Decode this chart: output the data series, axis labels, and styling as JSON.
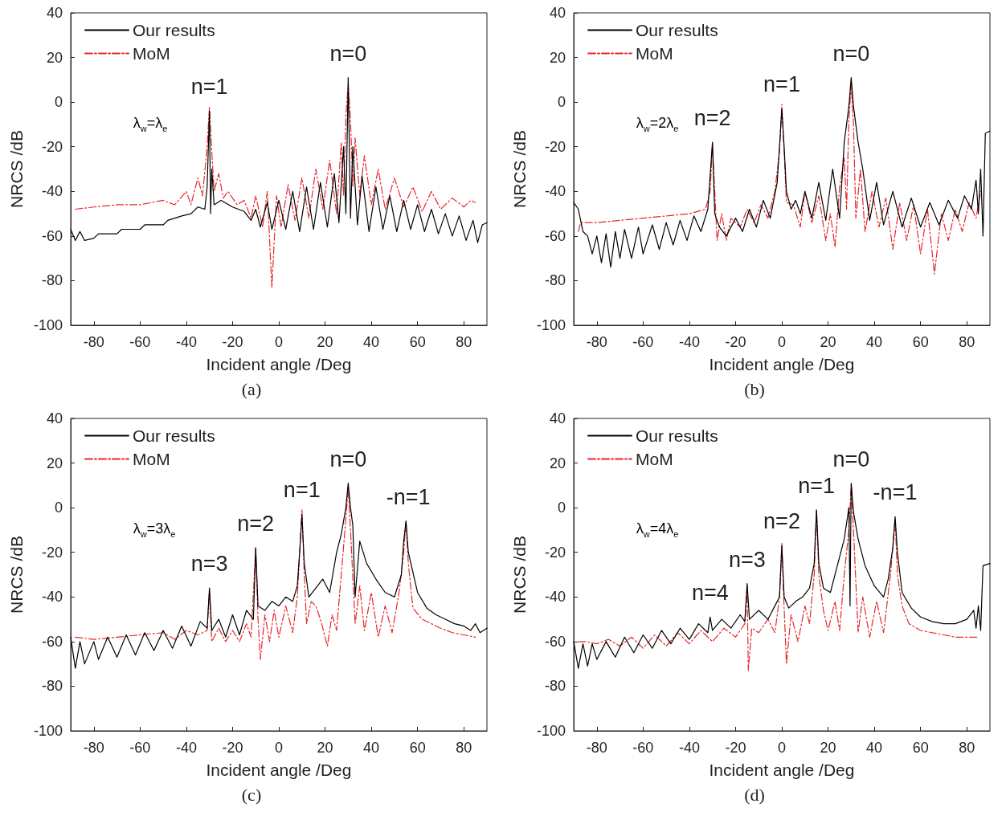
{
  "chart_data": [
    {
      "type": "line",
      "xlabel": "Incident angle /Deg",
      "ylabel": "NRCS /dB",
      "xlim": [
        -90,
        90
      ],
      "ylim": [
        -100,
        40
      ],
      "xticks": [
        -80,
        -60,
        -40,
        -20,
        0,
        20,
        40,
        60,
        80
      ],
      "yticks": [
        -100,
        -80,
        -60,
        -40,
        -20,
        0,
        20,
        40
      ],
      "grid": false,
      "legend": "top left",
      "marker": "none",
      "annotations": [
        "λ$_{w}$=λ$_{e}$",
        "(a)",
        {
          "text": "n=1",
          "x": -30,
          "y": -4
        },
        {
          "text": "n=0",
          "x": 30,
          "y": 11
        }
      ],
      "series": [
        {
          "name": "Our results",
          "color": "#000000",
          "line_style": "solid",
          "x": [
            -90,
            -88,
            -86,
            -84,
            -80,
            -78,
            -70,
            -68,
            -60,
            -58,
            -50,
            -48,
            -42,
            -38,
            -35,
            -32,
            -31,
            -30,
            -29.5,
            -29,
            -28,
            -25,
            -20,
            -15,
            -12,
            -10,
            -8,
            -5,
            -3,
            0,
            3,
            6,
            9,
            12,
            15,
            18,
            21,
            24,
            26,
            28,
            29,
            30,
            31,
            32,
            34,
            36,
            39,
            42,
            45,
            48,
            51,
            54,
            57,
            60,
            63,
            66,
            69,
            72,
            75,
            78,
            81,
            84,
            86,
            88,
            90
          ],
          "values": [
            -57,
            -62,
            -58,
            -62,
            -61,
            -59,
            -59,
            -57,
            -57,
            -55,
            -55,
            -53,
            -51,
            -50,
            -47,
            -48,
            -38,
            -4,
            -50,
            -30,
            -46,
            -44,
            -47,
            -49,
            -53,
            -48,
            -56,
            -45,
            -57,
            -44,
            -57,
            -40,
            -58,
            -38,
            -57,
            -36,
            -56,
            -32,
            -54,
            -20,
            -50,
            11,
            -52,
            -20,
            -55,
            -33,
            -58,
            -38,
            -57,
            -42,
            -58,
            -44,
            -57,
            -46,
            -58,
            -48,
            -59,
            -50,
            -60,
            -51,
            -62,
            -53,
            -63,
            -55,
            -54
          ]
        },
        {
          "name": "MoM",
          "color": "#e8262b",
          "line_style": "dashed",
          "x": [
            -88,
            -80,
            -70,
            -60,
            -50,
            -45,
            -40,
            -38,
            -35,
            -33,
            -31,
            -30,
            -29,
            -28,
            -26,
            -24,
            -22,
            -18,
            -15,
            -12,
            -10,
            -7,
            -5,
            -3,
            -1,
            1,
            4,
            7,
            10,
            13,
            16,
            19,
            22,
            25,
            27,
            28,
            29,
            30,
            31,
            32,
            33,
            35,
            37,
            40,
            43,
            46,
            50,
            54,
            58,
            62,
            66,
            70,
            75,
            80,
            83,
            85
          ],
          "values": [
            -48,
            -47,
            -46,
            -46,
            -44,
            -46,
            -40,
            -46,
            -34,
            -42,
            -20,
            -2,
            -22,
            -40,
            -32,
            -43,
            -40,
            -46,
            -44,
            -52,
            -42,
            -56,
            -40,
            -83,
            -42,
            -56,
            -37,
            -53,
            -34,
            -52,
            -30,
            -48,
            -26,
            -50,
            -18,
            -42,
            -6,
            8,
            -8,
            -38,
            -16,
            -42,
            -24,
            -46,
            -30,
            -48,
            -34,
            -47,
            -38,
            -49,
            -40,
            -48,
            -43,
            -47,
            -44,
            -45
          ]
        }
      ]
    },
    {
      "type": "line",
      "xlabel": "Incident angle /Deg",
      "ylabel": "NRCS /dB",
      "xlim": [
        -90,
        90
      ],
      "ylim": [
        -100,
        40
      ],
      "xticks": [
        -80,
        -60,
        -40,
        -20,
        0,
        20,
        40,
        60,
        80
      ],
      "yticks": [
        -100,
        -80,
        -60,
        -40,
        -20,
        0,
        20,
        40
      ],
      "grid": false,
      "legend": "top left",
      "marker": "none",
      "annotations": [
        "λ$_{w}$=2λ$_{e}$",
        "(b)",
        {
          "text": "n=2",
          "x": -30,
          "y": -18
        },
        {
          "text": "n=1",
          "x": 0,
          "y": -3
        },
        {
          "text": "n=0",
          "x": 30,
          "y": 11
        }
      ],
      "series": [
        {
          "name": "Our results",
          "color": "#000000",
          "line_style": "solid",
          "x": [
            -90,
            -88,
            -86,
            -84,
            -82,
            -80,
            -78,
            -76,
            -74,
            -72,
            -70,
            -68,
            -65,
            -62,
            -60,
            -56,
            -53,
            -50,
            -47,
            -44,
            -41,
            -38,
            -35,
            -32,
            -30,
            -29,
            -27,
            -24,
            -20,
            -17,
            -14,
            -11,
            -8,
            -5,
            -2,
            -1,
            0,
            1,
            2,
            4,
            6,
            8,
            10,
            13,
            16,
            19,
            22,
            25,
            27,
            29,
            30,
            31,
            33,
            35,
            38,
            41,
            44,
            48,
            52,
            56,
            60,
            64,
            68,
            72,
            76,
            79,
            82,
            84,
            85,
            86,
            87,
            88,
            90
          ],
          "values": [
            -45,
            -48,
            -58,
            -60,
            -68,
            -60,
            -72,
            -59,
            -74,
            -58,
            -70,
            -57,
            -70,
            -56,
            -68,
            -55,
            -66,
            -54,
            -64,
            -53,
            -62,
            -51,
            -58,
            -48,
            -18,
            -50,
            -56,
            -60,
            -52,
            -58,
            -48,
            -56,
            -44,
            -52,
            -36,
            -20,
            -3,
            -20,
            -40,
            -48,
            -44,
            -50,
            -40,
            -52,
            -36,
            -53,
            -30,
            -52,
            -18,
            -2,
            11,
            -2,
            -18,
            -30,
            -53,
            -36,
            -55,
            -40,
            -56,
            -43,
            -56,
            -45,
            -55,
            -44,
            -52,
            -42,
            -48,
            -35,
            -50,
            -30,
            -60,
            -14,
            -13
          ]
        },
        {
          "name": "MoM",
          "color": "#e8262b",
          "line_style": "dashed",
          "x": [
            -88,
            -87,
            -80,
            -70,
            -60,
            -50,
            -40,
            -33,
            -31,
            -30,
            -29,
            -28,
            -26,
            -24,
            -22,
            -18,
            -15,
            -12,
            -9,
            -6,
            -3,
            -1,
            0,
            1,
            2,
            5,
            8,
            10,
            13,
            16,
            19,
            21,
            23,
            25,
            27,
            28,
            29,
            30,
            31,
            32,
            34,
            36,
            39,
            42,
            45,
            48,
            51,
            54,
            57,
            60,
            63,
            66,
            69,
            72,
            75,
            78,
            81,
            84,
            86
          ],
          "values": [
            -58,
            -54,
            -54,
            -53,
            -52,
            -51,
            -50,
            -48,
            -40,
            -19,
            -40,
            -62,
            -50,
            -62,
            -52,
            -56,
            -48,
            -54,
            -46,
            -52,
            -40,
            -22,
            -1,
            -22,
            -45,
            -46,
            -56,
            -40,
            -54,
            -42,
            -62,
            -50,
            -65,
            -38,
            -25,
            -48,
            -8,
            8,
            -10,
            -52,
            -30,
            -58,
            -40,
            -56,
            -43,
            -66,
            -45,
            -62,
            -46,
            -68,
            -48,
            -77,
            -50,
            -62,
            -48,
            -58,
            -45,
            -52,
            -40
          ]
        }
      ]
    },
    {
      "type": "line",
      "xlabel": "Incident angle /Deg",
      "ylabel": "NRCS /dB",
      "xlim": [
        -90,
        90
      ],
      "ylim": [
        -100,
        40
      ],
      "xticks": [
        -80,
        -60,
        -40,
        -20,
        0,
        20,
        40,
        60,
        80
      ],
      "yticks": [
        -100,
        -80,
        -60,
        -40,
        -20,
        0,
        20,
        40
      ],
      "grid": false,
      "legend": "top left",
      "marker": "none",
      "annotations": [
        "λ$_{w}$=3λ$_{e}$",
        "(c)",
        {
          "text": "n=3",
          "x": -30,
          "y": -36
        },
        {
          "text": "n=2",
          "x": -10,
          "y": -18
        },
        {
          "text": "n=1",
          "x": 10,
          "y": -3
        },
        {
          "text": "n=0",
          "x": 30,
          "y": 11
        },
        {
          "text": "-n=1",
          "x": 56,
          "y": -6
        }
      ],
      "series": [
        {
          "name": "Our results",
          "color": "#000000",
          "line_style": "solid",
          "x": [
            -90,
            -88,
            -86,
            -84,
            -80,
            -78,
            -74,
            -70,
            -66,
            -62,
            -58,
            -54,
            -50,
            -46,
            -42,
            -38,
            -34,
            -31,
            -30,
            -29,
            -26,
            -23,
            -20,
            -17,
            -14,
            -11,
            -10,
            -9,
            -6,
            -3,
            0,
            3,
            6,
            8,
            9,
            10,
            11,
            13,
            16,
            19,
            22,
            25,
            27,
            29,
            30,
            31,
            32,
            33,
            35,
            38,
            42,
            46,
            50,
            53,
            54,
            55,
            56,
            60,
            64,
            68,
            72,
            76,
            80,
            83,
            85,
            87,
            90
          ],
          "values": [
            -58,
            -72,
            -60,
            -70,
            -60,
            -68,
            -58,
            -67,
            -57,
            -66,
            -56,
            -64,
            -55,
            -63,
            -53,
            -62,
            -51,
            -54,
            -36,
            -55,
            -50,
            -58,
            -48,
            -57,
            -46,
            -50,
            -18,
            -44,
            -46,
            -42,
            -44,
            -40,
            -42,
            -35,
            -20,
            -3,
            -25,
            -40,
            -36,
            -32,
            -38,
            -20,
            -12,
            0,
            11,
            0,
            -8,
            -40,
            -15,
            -25,
            -32,
            -38,
            -40,
            -30,
            -15,
            -6,
            -20,
            -38,
            -45,
            -48,
            -50,
            -52,
            -53,
            -55,
            -52,
            -56,
            -54
          ]
        },
        {
          "name": "MoM",
          "color": "#e8262b",
          "line_style": "dashed",
          "x": [
            -88,
            -80,
            -70,
            -60,
            -50,
            -45,
            -40,
            -35,
            -31,
            -30,
            -29,
            -26,
            -23,
            -20,
            -17,
            -14,
            -12,
            -10,
            -9,
            -8,
            -6,
            -4,
            -2,
            0,
            3,
            6,
            8,
            10,
            11,
            12,
            14,
            16,
            18,
            21,
            23,
            25,
            27,
            29,
            30,
            31,
            33,
            35,
            37,
            40,
            43,
            46,
            49,
            52,
            54,
            55,
            56,
            58,
            62,
            66,
            70,
            75,
            80,
            85
          ],
          "values": [
            -58,
            -59,
            -58,
            -57,
            -56,
            -59,
            -55,
            -57,
            -55,
            -37,
            -60,
            -54,
            -60,
            -55,
            -60,
            -52,
            -58,
            -18,
            -50,
            -68,
            -48,
            -60,
            -46,
            -58,
            -44,
            -56,
            -40,
            -1,
            -30,
            -52,
            -42,
            -44,
            -50,
            -62,
            -48,
            -55,
            -30,
            -5,
            9,
            -10,
            -52,
            -35,
            -55,
            -38,
            -58,
            -44,
            -56,
            -38,
            -20,
            -6,
            -25,
            -45,
            -50,
            -52,
            -54,
            -56,
            -57,
            -58
          ]
        }
      ]
    },
    {
      "type": "line",
      "xlabel": "Incident angle /Deg",
      "ylabel": "NRCS /dB",
      "xlim": [
        -90,
        90
      ],
      "ylim": [
        -100,
        40
      ],
      "xticks": [
        -80,
        -60,
        -40,
        -20,
        0,
        20,
        40,
        60,
        80
      ],
      "yticks": [
        -100,
        -80,
        -60,
        -40,
        -20,
        0,
        20,
        40
      ],
      "grid": false,
      "legend": "top left",
      "marker": "none",
      "annotations": [
        "λ$_{w}$=4λ$_{e}$",
        "(d)",
        {
          "text": "n=4",
          "x": -31,
          "y": -49
        },
        {
          "text": "n=3",
          "x": -15,
          "y": -34
        },
        {
          "text": "n=2",
          "x": 0,
          "y": -17
        },
        {
          "text": "n=1",
          "x": 15,
          "y": -1
        },
        {
          "text": "n=0",
          "x": 30,
          "y": 11
        },
        {
          "text": "-n=1",
          "x": 49,
          "y": -4
        }
      ],
      "series": [
        {
          "name": "Our results",
          "color": "#000000",
          "line_style": "solid",
          "x": [
            -90,
            -88,
            -86,
            -84,
            -82,
            -80,
            -76,
            -72,
            -68,
            -64,
            -60,
            -56,
            -52,
            -48,
            -44,
            -40,
            -36,
            -32,
            -31,
            -30,
            -26,
            -22,
            -18,
            -16,
            -15,
            -14,
            -10,
            -6,
            -3,
            -1,
            0,
            1,
            3,
            6,
            9,
            12,
            14,
            15,
            16,
            18,
            21,
            24,
            27,
            29,
            29.5,
            30,
            31,
            33,
            36,
            40,
            44,
            46,
            48,
            49,
            50,
            52,
            56,
            60,
            65,
            70,
            75,
            80,
            83,
            84,
            85,
            86,
            87,
            90
          ],
          "values": [
            -60,
            -72,
            -61,
            -71,
            -61,
            -68,
            -60,
            -67,
            -58,
            -65,
            -57,
            -63,
            -55,
            -61,
            -54,
            -59,
            -52,
            -56,
            -49,
            -55,
            -50,
            -54,
            -48,
            -51,
            -34,
            -50,
            -46,
            -50,
            -44,
            -40,
            -17,
            -40,
            -45,
            -42,
            -40,
            -36,
            -25,
            -1,
            -25,
            -36,
            -38,
            -26,
            -14,
            0,
            -44,
            11,
            -2,
            -14,
            -26,
            -35,
            -40,
            -32,
            -18,
            -4,
            -20,
            -38,
            -45,
            -49,
            -51,
            -52,
            -52,
            -50,
            -46,
            -54,
            -44,
            -55,
            -26,
            -25
          ]
        },
        {
          "name": "MoM",
          "color": "#e8262b",
          "line_style": "dashed",
          "x": [
            -88,
            -85,
            -80,
            -75,
            -70,
            -65,
            -60,
            -55,
            -50,
            -45,
            -40,
            -35,
            -30,
            -25,
            -20,
            -16,
            -15,
            -14.5,
            -13,
            -10,
            -6,
            -3,
            -1,
            0,
            1,
            2,
            4,
            7,
            10,
            12,
            14,
            15,
            16,
            18,
            20,
            23,
            25,
            27,
            29,
            30,
            31,
            33,
            35,
            38,
            41,
            44,
            47,
            49,
            50,
            52,
            55,
            60,
            65,
            70,
            75,
            80,
            85
          ],
          "values": [
            -60,
            -60,
            -61,
            -59,
            -62,
            -58,
            -63,
            -57,
            -62,
            -56,
            -61,
            -55,
            -60,
            -54,
            -58,
            -52,
            -35,
            -73,
            -54,
            -56,
            -50,
            -56,
            -40,
            -16,
            -45,
            -70,
            -48,
            -60,
            -44,
            -52,
            -30,
            -1,
            -30,
            -46,
            -55,
            -42,
            -55,
            -30,
            -10,
            10,
            -10,
            -56,
            -40,
            -58,
            -42,
            -56,
            -30,
            -5,
            -30,
            -44,
            -52,
            -55,
            -56,
            -57,
            -58,
            -58,
            -58
          ]
        }
      ]
    }
  ]
}
